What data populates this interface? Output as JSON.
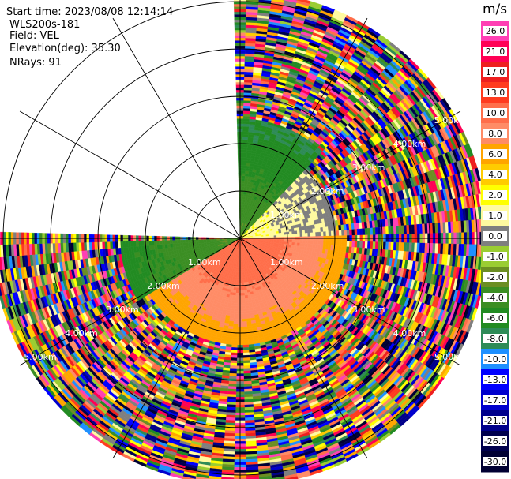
{
  "header": {
    "start_time": "Start time: 2023/08/08 12:14:14",
    "instrument": "WLS200s-181",
    "field": "Field: VEL",
    "elevation": "Elevation(deg): 35.30",
    "nrays": "NRays: 91"
  },
  "colorbar": {
    "unit": "m/s",
    "ticks": [
      "26.0",
      "21.0",
      "17.0",
      "13.0",
      "10.0",
      "8.0",
      "6.0",
      "4.0",
      "2.0",
      "1.0",
      "0.0",
      "-1.0",
      "-2.0",
      "-4.0",
      "-6.0",
      "-8.0",
      "-10.0",
      "-13.0",
      "-17.0",
      "-21.0",
      "-26.0",
      "-30.0"
    ],
    "colors": [
      "#ff3fb4",
      "#ff0055",
      "#ee1f1f",
      "#ff3b1f",
      "#ff6e4a",
      "#ff8c66",
      "#ffa500",
      "#ffcc00",
      "#ffff00",
      "#fffaa0",
      "#7f7f7f",
      "#9acd32",
      "#6b8e23",
      "#3b8e23",
      "#228b22",
      "#2e8b57",
      "#1e90ff",
      "#0000ff",
      "#0000cd",
      "#00008b",
      "#00004d",
      "#000033"
    ]
  },
  "range_labels": [
    "1.00km",
    "2.00km",
    "3.00km",
    "4.00km",
    "5.00km"
  ],
  "chart_data": {
    "type": "ppi",
    "field": "VEL",
    "units": "m/s",
    "vmin": -30.0,
    "vmax": 26.0,
    "nrays": 91,
    "azimuth_coverage_deg": [
      0,
      270
    ],
    "range_rings_km": [
      1,
      2,
      3,
      4,
      5
    ],
    "max_range_km": 5.2,
    "near_range_pattern": [
      {
        "azimuth_deg": [
          0,
          45
        ],
        "range_km": [
          0,
          2.5
        ],
        "velocity": [
          -8,
          -2
        ],
        "note": "green/blue towards north"
      },
      {
        "azimuth_deg": [
          45,
          90
        ],
        "range_km": [
          0,
          2.0
        ],
        "velocity": [
          0,
          2
        ],
        "note": "grey/yellow east"
      },
      {
        "azimuth_deg": [
          90,
          240
        ],
        "range_km": [
          0,
          2.2
        ],
        "velocity": [
          4,
          13
        ],
        "note": "orange/red core south-west"
      },
      {
        "azimuth_deg": [
          240,
          270
        ],
        "range_km": [
          0,
          2.5
        ],
        "velocity": [
          -6,
          -2
        ],
        "note": "green west"
      }
    ],
    "far_range": "noise (random colors) beyond ~2.5 km"
  }
}
